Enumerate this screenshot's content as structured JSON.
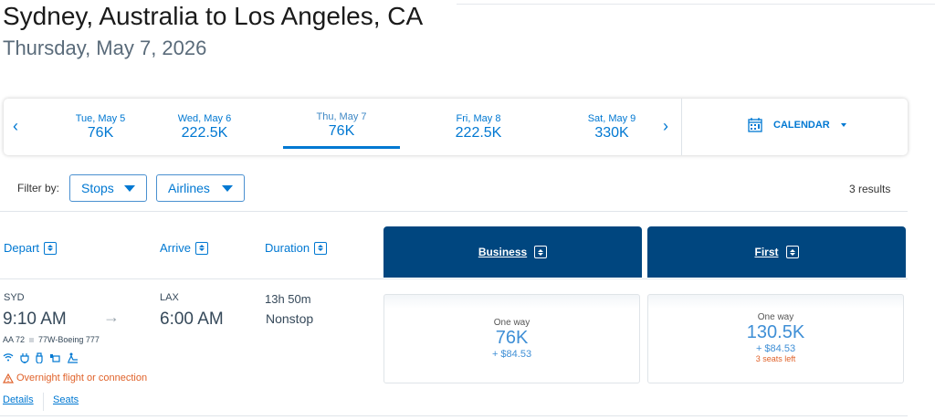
{
  "header": {
    "title": "Sydney, Australia to Los Angeles, CA",
    "subtitle": "Thursday, May 7, 2026"
  },
  "dates": [
    {
      "day": "Tue, May 5",
      "price": "76K"
    },
    {
      "day": "Wed, May 6",
      "price": "222.5K"
    },
    {
      "day": "Thu, May 7",
      "price": "76K",
      "selected": true
    },
    {
      "day": "Fri, May 8",
      "price": "222.5K"
    },
    {
      "day": "Sat, May 9",
      "price": "330K"
    }
  ],
  "calendar_label": "CALENDAR",
  "filters": {
    "label": "Filter by:",
    "stops": "Stops",
    "airlines": "Airlines"
  },
  "results": "3 results",
  "columns": {
    "depart": "Depart",
    "arrive": "Arrive",
    "duration": "Duration",
    "business": "Business",
    "first": "First"
  },
  "flight": {
    "origin": "SYD",
    "depart_time": "9:10 AM",
    "dest": "LAX",
    "arrive_time": "6:00 AM",
    "duration": "13h 50m",
    "stops": "Nonstop",
    "flight_no": "AA 72",
    "aircraft": "77W-Boeing 777",
    "amenities": [
      "wifi-icon",
      "power-icon",
      "usb-icon",
      "entertainment-icon",
      "lie-flat-seat-icon"
    ],
    "warning": "Overnight flight or connection",
    "details": "Details",
    "seats": "Seats",
    "business": {
      "label": "One way",
      "points": "76K",
      "tax": "+ $84.53"
    },
    "first": {
      "label": "One way",
      "points": "130.5K",
      "tax": "+ $84.53",
      "seats_left": "3 seats left"
    }
  },
  "colors": {
    "accent": "#0078d2",
    "header_bg": "#00467f",
    "warning": "#e0622a"
  }
}
